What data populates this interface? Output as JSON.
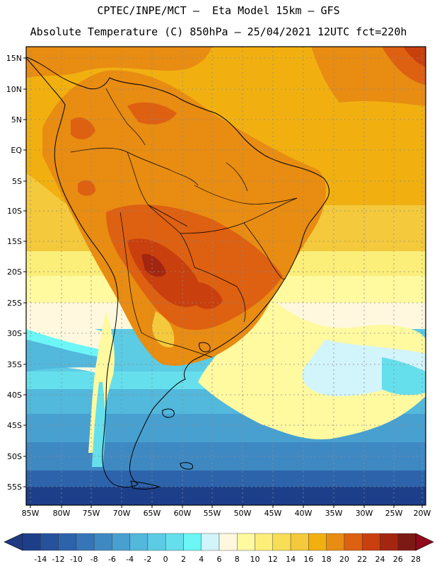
{
  "header": {
    "line1": "CPTEC/INPE/MCT –  Eta Model 15km – GFS",
    "line2": "Absolute Temperature (C) 850hPa – 25/04/2021 12UTC fct=220h"
  },
  "map": {
    "lon_labels": [
      "85W",
      "80W",
      "75W",
      "70W",
      "65W",
      "60W",
      "55W",
      "50W",
      "45W",
      "40W",
      "35W",
      "30W",
      "25W",
      "20W"
    ],
    "lat_labels": [
      "15N",
      "10N",
      "5N",
      "EQ",
      "5S",
      "10S",
      "15S",
      "20S",
      "25S",
      "30S",
      "35S",
      "40S",
      "45S",
      "50S",
      "55S"
    ],
    "lon_range": [
      -85,
      -20
    ],
    "lat_range": [
      17,
      -58
    ]
  },
  "colorbar": {
    "labels": [
      "-14",
      "-12",
      "-10",
      "-8",
      "-6",
      "-4",
      "-2",
      "0",
      "2",
      "4",
      "6",
      "8",
      "10",
      "12",
      "14",
      "16",
      "18",
      "20",
      "22",
      "24",
      "26",
      "28"
    ],
    "colors": [
      "#1d3f8a",
      "#25529b",
      "#2c63aa",
      "#3675b7",
      "#3f89c3",
      "#48a0d0",
      "#52b8dc",
      "#5ccbe4",
      "#66dfec",
      "#6cf6f6",
      "#d2f4fb",
      "#fff8de",
      "#fff9a0",
      "#fbee79",
      "#f8de56",
      "#f4c93c",
      "#f1b010",
      "#e88c12",
      "#de6011",
      "#c93f0d",
      "#a32611",
      "#7d1914"
    ],
    "under_color": "#203a82",
    "over_color": "#8e0a1c"
  }
}
